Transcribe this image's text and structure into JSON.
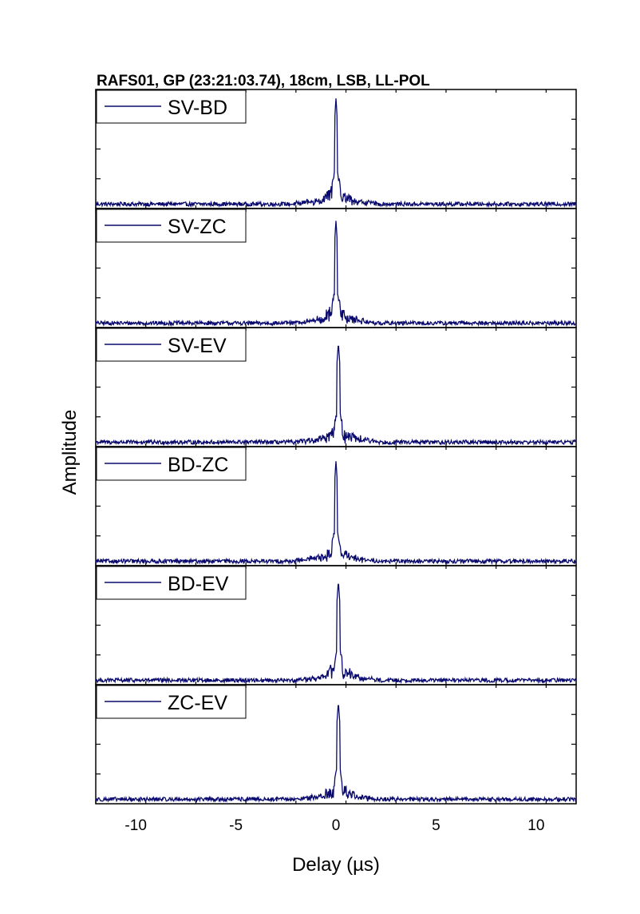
{
  "chart_data": {
    "type": "line",
    "title": "RAFS01, GP (23:21:03.74), 18cm, LSB, LL-POL",
    "xlabel": "Delay (µs)",
    "ylabel": "Amplitude",
    "xlim": [
      -12,
      12
    ],
    "ylim": [
      0,
      1.0
    ],
    "xticks": [
      -10,
      -5,
      0,
      5,
      10
    ],
    "xtick_labels": [
      "-10",
      "-5",
      "0",
      "5",
      "10"
    ],
    "legend_placement": "top-left",
    "line_color": "#0a0a6e",
    "grid": false,
    "series": [
      {
        "name": "SV-BD",
        "peak_x": 0.0,
        "peak": 0.95,
        "noise": 0.025
      },
      {
        "name": "SV-ZC",
        "peak_x": 0.0,
        "peak": 0.92,
        "noise": 0.025
      },
      {
        "name": "SV-EV",
        "peak_x": 0.12,
        "peak": 0.9,
        "noise": 0.025
      },
      {
        "name": "BD-ZC",
        "peak_x": 0.0,
        "peak": 0.9,
        "noise": 0.025
      },
      {
        "name": "BD-EV",
        "peak_x": 0.12,
        "peak": 0.9,
        "noise": 0.025
      },
      {
        "name": "ZC-EV",
        "peak_x": 0.12,
        "peak": 0.88,
        "noise": 0.025
      }
    ]
  }
}
